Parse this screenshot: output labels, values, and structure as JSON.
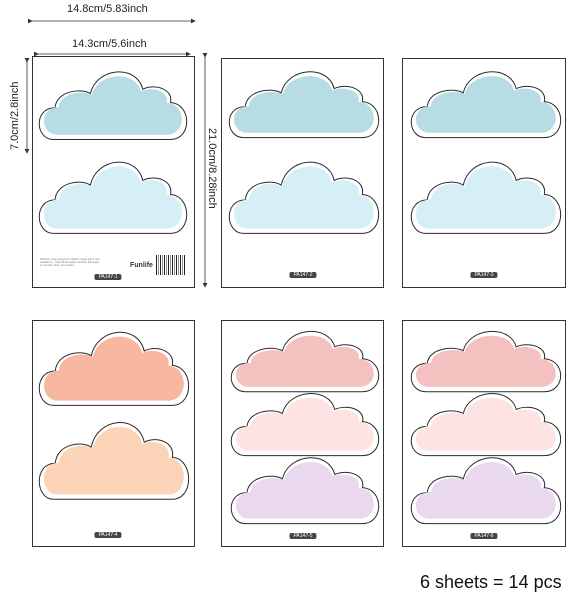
{
  "dimensions": {
    "outer_width": "14.8cm/5.83inch",
    "inner_width": "14.3cm/5.6inch",
    "cloud_height": "7.0cm/2.8inch",
    "sheet_height": "21.0cm/8.28inch"
  },
  "sheets": [
    {
      "code": "PA147-1",
      "clouds": [
        "#b7dce3",
        "#d6eef5"
      ]
    },
    {
      "code": "PA147-2",
      "clouds": [
        "#b7dce3",
        "#d6eef5"
      ]
    },
    {
      "code": "PA147-3",
      "clouds": [
        "#b7dce3",
        "#d6eef5"
      ]
    },
    {
      "code": "PA147-4",
      "clouds": [
        "#f7b7a0",
        "#fbd4b8"
      ]
    },
    {
      "code": "PA147-5",
      "clouds": [
        "#f5c0c0",
        "#fde3e1",
        "#ead8ee"
      ]
    },
    {
      "code": "PA147-6",
      "clouds": [
        "#f5c0c0",
        "#fde3e1",
        "#ead8ee"
      ]
    }
  ],
  "brand": "Funlife",
  "fine_print": "Warning: Keep away from children under age 3. Not suitable for... Peel off the sticker carefully and apply on smooth, clean, dry surface.",
  "footer": "6 sheets = 14 pcs"
}
